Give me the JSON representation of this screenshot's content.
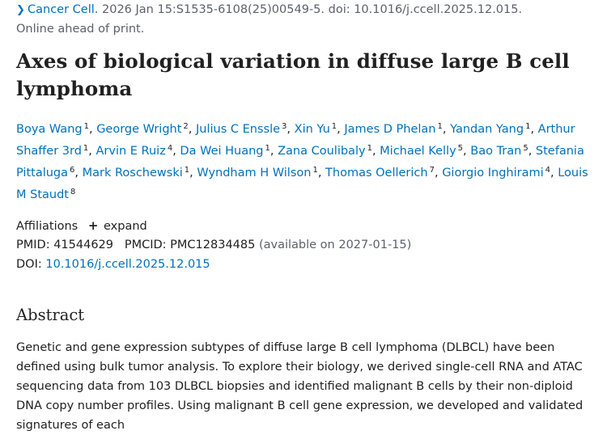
{
  "citation": {
    "journal": "Cancer Cell.",
    "details": " 2026 Jan 15:S1535-6108(25)00549-5. doi: 10.1016/j.ccell.2025.12.015.",
    "status": "Online ahead of print."
  },
  "title": "Axes of biological variation in diffuse large B cell lymphoma",
  "authors": [
    {
      "name": "Boya Wang",
      "aff": "1"
    },
    {
      "name": "George Wright",
      "aff": "2"
    },
    {
      "name": "Julius C Enssle",
      "aff": "3"
    },
    {
      "name": "Xin Yu",
      "aff": "1"
    },
    {
      "name": "James D Phelan",
      "aff": "1"
    },
    {
      "name": "Yandan Yang",
      "aff": "1"
    },
    {
      "name": "Arthur Shaffer 3rd",
      "aff": "1"
    },
    {
      "name": "Arvin E Ruiz",
      "aff": "4"
    },
    {
      "name": "Da Wei Huang",
      "aff": "1"
    },
    {
      "name": "Zana Coulibaly",
      "aff": "1"
    },
    {
      "name": "Michael Kelly",
      "aff": "5"
    },
    {
      "name": "Bao Tran",
      "aff": "5"
    },
    {
      "name": "Stefania Pittaluga",
      "aff": "6"
    },
    {
      "name": "Mark Roschewski",
      "aff": "1"
    },
    {
      "name": "Wyndham H Wilson",
      "aff": "1"
    },
    {
      "name": "Thomas Oellerich",
      "aff": "7"
    },
    {
      "name": "Giorgio Inghirami",
      "aff": "4"
    },
    {
      "name": "Louis M Staudt",
      "aff": "8"
    }
  ],
  "affiliations": {
    "label": "Affiliations",
    "expand_icon": "plus-icon",
    "expand_label": "expand"
  },
  "identifiers": {
    "pmid_label": "PMID:",
    "pmid": "41544629",
    "pmcid_label": "PMCID:",
    "pmcid": "PMC12834485",
    "pmc_note": "(available on 2027-01-15)",
    "doi_label": "DOI:",
    "doi": "10.1016/j.ccell.2025.12.015"
  },
  "abstract": {
    "heading": "Abstract",
    "text": "Genetic and gene expression subtypes of diffuse large B cell lymphoma (DLBCL) have been defined using bulk tumor analysis. To explore their biology, we derived single-cell RNA and ATAC sequencing data from 103 DLBCL biopsies and identified malignant B cells by their non-diploid DNA copy number profiles. Using malignant B cell gene expression, we developed and validated signatures of each"
  },
  "colors": {
    "link": "#0071bc",
    "text": "#212121",
    "muted": "#5b616b"
  }
}
